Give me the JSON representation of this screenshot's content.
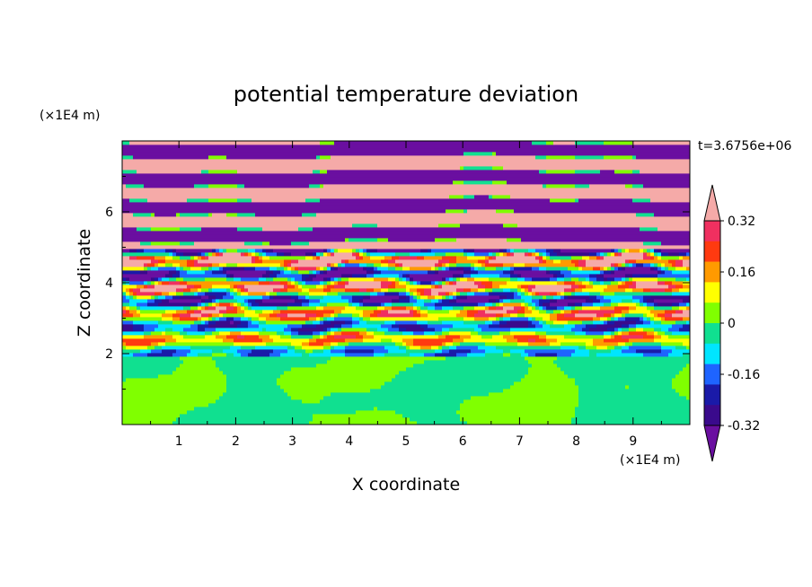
{
  "chart_data": {
    "type": "heatmap",
    "title": "potential temperature deviation",
    "xlabel": "X coordinate",
    "ylabel": "Z coordinate",
    "x_unit": "(×1E4 m)",
    "y_unit": "(×1E4 m)",
    "time_label": "t=3.6756e+06",
    "xlim": [
      0,
      10
    ],
    "ylim": [
      0,
      8
    ],
    "x_ticks": [
      1,
      2,
      3,
      4,
      5,
      6,
      7,
      8,
      9
    ],
    "y_ticks": [
      2,
      4,
      6
    ],
    "colorbar": {
      "labels": [
        "0.32",
        "0.16",
        "0",
        "-0.16",
        "-0.32"
      ],
      "levels": [
        -0.4,
        -0.32,
        -0.24,
        -0.16,
        -0.08,
        0,
        0.08,
        0.16,
        0.24,
        0.32,
        0.4
      ],
      "colors": [
        "#6a0fa0",
        "#3a0a8c",
        "#1a1aa8",
        "#1e64ff",
        "#00e5ff",
        "#10e090",
        "#80ff00",
        "#ffff00",
        "#ff9a00",
        "#ff3a10",
        "#f03060",
        "#f5aaa8"
      ],
      "extend": "both"
    },
    "field": {
      "lower_layer": {
        "z_range": [
          0,
          2
        ],
        "dominant_values": [
          0.04,
          -0.04
        ]
      },
      "transition_layer": {
        "z_range": [
          2,
          5
        ],
        "value_range": [
          -0.4,
          0.4
        ]
      },
      "upper_layer": {
        "z_range": [
          5,
          8
        ],
        "alternating_values": [
          0.42,
          -0.42
        ]
      }
    }
  }
}
